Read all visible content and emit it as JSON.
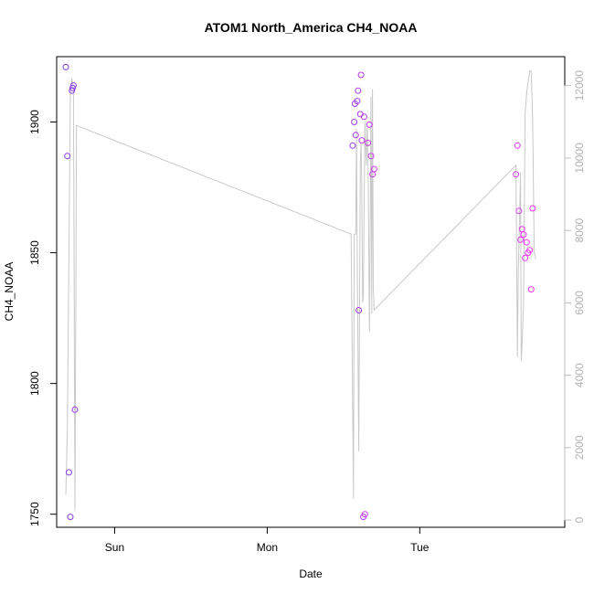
{
  "chart_data": {
    "type": "scatter",
    "title": "ATOM1 North_America CH4_NOAA",
    "xlabel": "Date",
    "ylabel": "CH4_NOAA",
    "x_ticks": [
      "Sun",
      "Mon",
      "Tue"
    ],
    "x_tick_positions_days": [
      1.0,
      2.0,
      3.0
    ],
    "xlim_days": [
      0.62,
      3.95
    ],
    "ylim": [
      1745,
      1925
    ],
    "y_ticks": [
      1750,
      1800,
      1850,
      1900
    ],
    "y2lim": [
      -200,
      12800
    ],
    "y2_ticks": [
      0,
      2000,
      4000,
      6000,
      8000,
      10000,
      12000
    ],
    "y2_color": "#bebebe",
    "grid": false,
    "series": [
      {
        "role": "points",
        "x_days": [
          0.68,
          0.69,
          0.7,
          0.71,
          0.72,
          0.725,
          0.73,
          0.74,
          2.56,
          2.57,
          2.575,
          2.58,
          2.59,
          2.595,
          2.6,
          2.61,
          2.615,
          2.62,
          2.63,
          2.635,
          2.64,
          2.66,
          2.67,
          2.68,
          2.69,
          2.7,
          3.63,
          3.64,
          3.65,
          3.66,
          3.67,
          3.68,
          3.69,
          3.7,
          3.71,
          3.72,
          3.73,
          3.74
        ],
        "y": [
          1921,
          1887,
          1766,
          1749,
          1912,
          1913,
          1914,
          1790,
          1891,
          1900,
          1907,
          1895,
          1908,
          1912,
          1828,
          1903,
          1918,
          1893,
          1749,
          1902,
          1750,
          1892,
          1899,
          1887,
          1880,
          1882,
          1880,
          1891,
          1866,
          1855,
          1859,
          1857,
          1848,
          1854,
          1850,
          1851,
          1836,
          1867
        ],
        "color_start": "#7a3fe6",
        "color_end": "#ff33ff"
      },
      {
        "role": "altitude-line",
        "color": "#c8c8c8",
        "x_days": [
          0.68,
          0.69,
          0.71,
          0.72,
          0.73,
          0.74,
          0.75,
          2.55,
          2.565,
          2.57,
          2.58,
          2.585,
          2.59,
          2.6,
          2.61,
          2.615,
          2.62,
          2.625,
          2.63,
          2.64,
          2.65,
          2.655,
          2.66,
          2.67,
          2.68,
          2.685,
          2.69,
          2.695,
          2.7,
          3.63,
          3.64,
          3.645,
          3.66,
          3.665,
          3.67,
          3.68,
          3.69,
          3.7,
          3.72,
          3.73,
          3.74,
          3.75,
          3.76
        ],
        "y2": [
          700,
          2500,
          11800,
          12200,
          11900,
          250,
          10900,
          7900,
          600,
          7900,
          7900,
          10800,
          7400,
          1900,
          9900,
          10400,
          9200,
          6000,
          6200,
          11000,
          9800,
          10900,
          10300,
          5200,
          11700,
          5700,
          11900,
          6500,
          5800,
          9800,
          4500,
          6800,
          9600,
          4400,
          4800,
          6000,
          11200,
          11800,
          12400,
          12400,
          11000,
          7400,
          7200
        ]
      }
    ]
  }
}
